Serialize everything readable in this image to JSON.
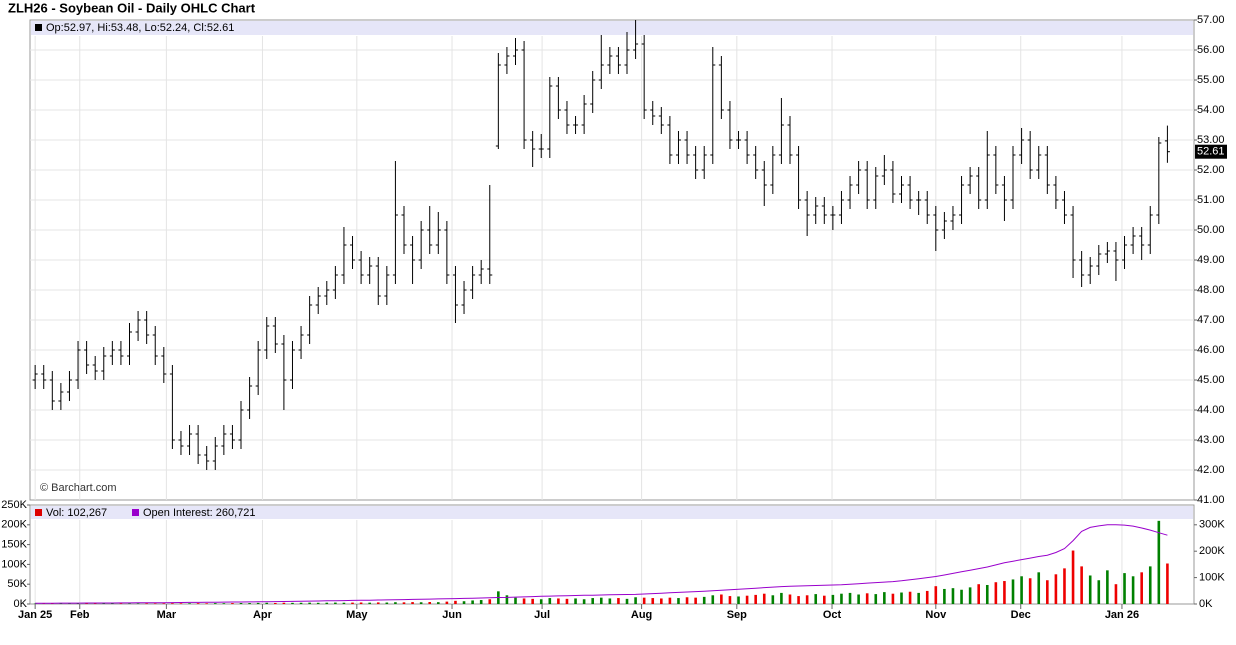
{
  "chart_data": [
    {
      "type": "ohlc",
      "title": "ZLH26 - Soybean Oil - Daily OHLC Chart",
      "legend": "Op:52.97, Hi:53.48, Lo:52.24, Cl:52.61",
      "watermark": "© Barchart.com",
      "color": "#000000",
      "grid": true,
      "open": [
        45.0,
        45.2,
        45.0,
        44.3,
        44.6,
        45.0,
        46.0,
        45.5,
        45.3,
        45.8,
        46.0,
        45.8,
        46.6,
        47.0,
        46.5,
        45.8,
        45.2,
        43.0,
        42.8,
        43.2,
        42.5,
        42.3,
        42.8,
        43.2,
        43.0,
        44.0,
        44.8,
        46.0,
        46.8,
        46.2,
        45.0,
        46.0,
        46.5,
        47.5,
        47.8,
        48.0,
        48.5,
        49.5,
        49.0,
        48.5,
        48.8,
        47.8,
        48.5,
        50.5,
        49.5,
        49.0,
        50.0,
        49.5,
        50.0,
        48.5,
        47.5,
        48.0,
        48.5,
        48.7,
        52.8,
        55.5,
        55.8,
        56.0,
        53.0,
        52.7,
        52.7,
        54.8,
        54.0,
        53.5,
        53.5,
        54.2,
        55.0,
        55.5,
        55.8,
        55.5,
        56.0,
        56.2,
        54.0,
        53.8,
        53.5,
        52.5,
        53.0,
        52.5,
        52.0,
        52.5,
        55.5,
        54.0,
        53.0,
        53.0,
        52.5,
        52.0,
        51.5,
        52.5,
        53.5,
        52.5,
        51.0,
        50.5,
        50.8,
        50.5,
        50.5,
        51.0,
        51.5,
        52.0,
        51.0,
        51.8,
        52.0,
        51.2,
        51.5,
        51.0,
        51.0,
        50.5,
        50.0,
        50.3,
        50.5,
        51.5,
        51.8,
        51.0,
        52.5,
        51.5,
        51.0,
        52.5,
        53.0,
        52.0,
        52.5,
        51.5,
        51.0,
        50.5,
        49.0,
        48.5,
        48.8,
        49.2,
        49.3,
        49.0,
        49.5,
        49.8,
        49.5,
        50.5,
        52.97
      ],
      "high": [
        45.5,
        45.5,
        45.3,
        44.9,
        45.3,
        46.3,
        46.3,
        45.8,
        46.1,
        46.3,
        46.3,
        46.9,
        47.3,
        47.3,
        46.8,
        46.1,
        45.5,
        43.3,
        43.5,
        43.5,
        42.8,
        43.1,
        43.5,
        43.5,
        44.3,
        45.1,
        46.3,
        47.1,
        47.1,
        46.5,
        46.3,
        46.8,
        47.8,
        48.1,
        48.3,
        48.8,
        50.1,
        49.8,
        49.3,
        49.1,
        49.1,
        48.8,
        52.3,
        50.8,
        49.8,
        50.3,
        50.8,
        50.6,
        50.3,
        48.8,
        48.3,
        48.8,
        49.0,
        51.5,
        55.9,
        56.1,
        56.4,
        56.3,
        53.3,
        53.2,
        55.1,
        55.1,
        54.3,
        53.8,
        54.5,
        55.3,
        56.5,
        56.1,
        56.1,
        56.6,
        57.0,
        56.5,
        54.3,
        54.1,
        53.8,
        53.3,
        53.3,
        52.8,
        52.8,
        56.1,
        55.8,
        54.3,
        53.3,
        53.3,
        52.8,
        52.3,
        52.8,
        54.4,
        53.8,
        52.8,
        51.3,
        51.1,
        51.1,
        50.8,
        51.3,
        51.8,
        52.3,
        52.3,
        52.1,
        52.5,
        52.3,
        51.8,
        51.8,
        51.3,
        51.3,
        50.8,
        50.6,
        50.8,
        51.8,
        52.1,
        52.1,
        53.3,
        52.8,
        51.8,
        52.8,
        53.4,
        53.3,
        52.8,
        52.8,
        51.8,
        51.3,
        50.8,
        49.3,
        49.1,
        49.5,
        49.6,
        49.6,
        49.8,
        50.1,
        50.1,
        50.8,
        53.1,
        53.48
      ],
      "low": [
        44.7,
        44.7,
        44.0,
        44.0,
        44.3,
        44.7,
        45.2,
        45.0,
        45.0,
        45.5,
        45.5,
        45.5,
        46.3,
        46.2,
        45.5,
        44.9,
        42.7,
        42.5,
        42.5,
        42.2,
        42.0,
        42.0,
        42.5,
        42.7,
        42.7,
        43.7,
        44.5,
        45.7,
        45.9,
        44.0,
        44.7,
        45.7,
        46.2,
        47.2,
        47.5,
        47.7,
        48.2,
        48.7,
        48.2,
        48.2,
        47.5,
        47.5,
        48.2,
        49.2,
        48.2,
        48.7,
        49.2,
        49.2,
        48.2,
        46.9,
        47.2,
        47.7,
        48.2,
        48.2,
        52.7,
        55.2,
        55.5,
        52.7,
        52.1,
        52.4,
        52.4,
        53.7,
        53.2,
        53.2,
        53.2,
        53.9,
        54.7,
        55.2,
        55.2,
        55.2,
        55.7,
        53.7,
        53.5,
        53.2,
        52.2,
        52.2,
        52.2,
        51.7,
        51.7,
        52.2,
        53.7,
        52.7,
        52.7,
        52.2,
        51.7,
        50.8,
        51.2,
        52.2,
        52.2,
        50.7,
        49.8,
        50.2,
        50.2,
        50.0,
        50.2,
        50.7,
        51.2,
        50.7,
        50.7,
        51.5,
        50.9,
        50.9,
        50.7,
        50.5,
        50.2,
        49.3,
        49.7,
        50.0,
        50.2,
        51.2,
        50.7,
        50.7,
        51.2,
        50.3,
        50.7,
        52.2,
        51.7,
        51.7,
        51.2,
        50.7,
        50.2,
        48.4,
        48.1,
        48.2,
        48.5,
        48.9,
        48.3,
        48.7,
        49.2,
        49.0,
        49.2,
        50.2,
        52.24
      ],
      "close": [
        45.2,
        45.0,
        44.3,
        44.6,
        45.0,
        46.0,
        45.5,
        45.3,
        45.8,
        46.0,
        45.8,
        46.6,
        47.0,
        46.5,
        45.8,
        45.2,
        43.0,
        42.8,
        43.2,
        42.5,
        42.3,
        42.8,
        43.2,
        43.0,
        44.0,
        44.8,
        46.0,
        46.8,
        46.2,
        45.0,
        46.0,
        46.5,
        47.5,
        47.8,
        48.0,
        48.5,
        49.5,
        49.0,
        48.5,
        48.8,
        47.8,
        48.5,
        50.5,
        49.5,
        49.0,
        50.0,
        49.5,
        50.0,
        48.5,
        47.5,
        48.0,
        48.5,
        48.7,
        48.5,
        55.5,
        55.8,
        56.0,
        53.0,
        52.7,
        52.7,
        54.8,
        54.0,
        53.5,
        53.5,
        54.2,
        55.0,
        55.5,
        55.8,
        55.5,
        56.0,
        56.2,
        54.0,
        53.8,
        53.5,
        52.5,
        53.0,
        52.5,
        52.0,
        52.5,
        55.5,
        54.0,
        53.0,
        53.0,
        52.5,
        52.0,
        51.5,
        52.5,
        53.5,
        52.5,
        51.0,
        50.5,
        50.8,
        50.5,
        50.5,
        51.0,
        51.5,
        52.0,
        51.0,
        51.8,
        52.0,
        51.2,
        51.5,
        51.0,
        51.0,
        50.5,
        50.0,
        50.3,
        50.5,
        51.5,
        51.8,
        51.0,
        52.5,
        51.5,
        51.0,
        52.5,
        53.0,
        52.0,
        52.5,
        51.5,
        51.0,
        50.5,
        49.0,
        48.5,
        48.8,
        49.2,
        49.3,
        49.0,
        49.5,
        49.8,
        49.5,
        50.5,
        52.9,
        52.61
      ],
      "xlim": [
        -0.6,
        135.1
      ],
      "xticks": [
        {
          "value": 0,
          "label": "Jan 25"
        },
        {
          "value": 5.2,
          "label": "Feb"
        },
        {
          "value": 15.3,
          "label": "Mar"
        },
        {
          "value": 26.5,
          "label": "Apr"
        },
        {
          "value": 37.5,
          "label": "May"
        },
        {
          "value": 48.6,
          "label": "Jun"
        },
        {
          "value": 59.1,
          "label": "Jul"
        },
        {
          "value": 70.7,
          "label": "Aug"
        },
        {
          "value": 81.8,
          "label": "Sep"
        },
        {
          "value": 92.9,
          "label": "Oct"
        },
        {
          "value": 105,
          "label": "Nov"
        },
        {
          "value": 114.9,
          "label": "Dec"
        },
        {
          "value": 126.7,
          "label": "Jan 26"
        }
      ],
      "ylim": [
        41,
        57
      ],
      "yticks": [
        {
          "value": 41,
          "label": "41.00"
        },
        {
          "value": 42,
          "label": "42.00"
        },
        {
          "value": 43,
          "label": "43.00"
        },
        {
          "value": 44,
          "label": "44.00"
        },
        {
          "value": 45,
          "label": "45.00"
        },
        {
          "value": 46,
          "label": "46.00"
        },
        {
          "value": 47,
          "label": "47.00"
        },
        {
          "value": 48,
          "label": "48.00"
        },
        {
          "value": 49,
          "label": "49.00"
        },
        {
          "value": 50,
          "label": "50.00"
        },
        {
          "value": 51,
          "label": "51.00"
        },
        {
          "value": 52,
          "label": "52.00"
        },
        {
          "value": 53,
          "label": "53.00"
        },
        {
          "value": 54,
          "label": "54.00"
        },
        {
          "value": 55,
          "label": "55.00"
        },
        {
          "value": 56,
          "label": "56.00"
        },
        {
          "value": 57,
          "label": "57.00"
        }
      ]
    },
    {
      "type": "bar",
      "up_color": "#008000",
      "down_color": "#ee0000",
      "series": [
        {
          "name": "Vol: 102,267",
          "color": "#dd0000",
          "values": [
            1200,
            1000,
            1500,
            1300,
            1100,
            1400,
            1600,
            1200,
            1300,
            1500,
            1700,
            1400,
            1600,
            1800,
            1500,
            1700,
            2000,
            1800,
            1900,
            2100,
            1800,
            2200,
            2000,
            2300,
            2500,
            2400,
            2800,
            3000,
            2600,
            3200,
            2900,
            3100,
            3400,
            3000,
            3300,
            3600,
            3200,
            3500,
            3800,
            3400,
            4000,
            3700,
            4500,
            4200,
            4800,
            4400,
            5000,
            4600,
            6000,
            8000,
            7000,
            9000,
            10000,
            12000,
            32000,
            22000,
            16000,
            14000,
            13000,
            12000,
            15000,
            14000,
            13000,
            14000,
            12000,
            15000,
            16000,
            14000,
            15000,
            13000,
            17000,
            16000,
            15000,
            14000,
            16000,
            15000,
            17000,
            16000,
            18000,
            22000,
            24000,
            20000,
            19000,
            21000,
            23000,
            26000,
            22000,
            28000,
            24000,
            20000,
            22000,
            25000,
            21000,
            23000,
            26000,
            28000,
            24000,
            27000,
            25000,
            30000,
            26000,
            29000,
            31000,
            28000,
            33000,
            45000,
            38000,
            40000,
            36000,
            42000,
            50000,
            48000,
            55000,
            58000,
            62000,
            70000,
            65000,
            80000,
            60000,
            75000,
            90000,
            135000,
            95000,
            72000,
            60000,
            85000,
            50000,
            78000,
            70000,
            80000,
            95000,
            210000,
            102267
          ]
        },
        {
          "name": "Open Interest: 260,721",
          "color": "#9900cc",
          "axis": "y2",
          "values": [
            3000,
            3100,
            3200,
            3300,
            3400,
            3500,
            3600,
            3700,
            3800,
            3900,
            4000,
            4200,
            4400,
            4600,
            4800,
            5000,
            5300,
            5600,
            5900,
            6200,
            6500,
            6800,
            7100,
            7400,
            7700,
            8000,
            8400,
            8800,
            9200,
            9600,
            10000,
            10500,
            11000,
            11500,
            12000,
            12500,
            13000,
            13500,
            14000,
            14500,
            15000,
            15600,
            16200,
            16800,
            17400,
            18000,
            18600,
            19200,
            19800,
            20500,
            21200,
            22000,
            22800,
            23600,
            24500,
            25000,
            26000,
            27000,
            28000,
            29000,
            30000,
            30700,
            31400,
            32100,
            32800,
            33500,
            34200,
            34900,
            35500,
            36000,
            36500,
            38000,
            39500,
            41000,
            42500,
            44000,
            45500,
            47000,
            48500,
            50000,
            52000,
            54000,
            56000,
            58000,
            60000,
            62000,
            64000,
            66000,
            67000,
            68000,
            69000,
            70000,
            71000,
            72000,
            73000,
            75000,
            77000,
            79000,
            81000,
            83000,
            85000,
            88000,
            92000,
            96000,
            100000,
            104000,
            110000,
            116000,
            122000,
            128000,
            134000,
            140000,
            148000,
            156000,
            162000,
            168000,
            174000,
            180000,
            185000,
            195000,
            210000,
            240000,
            275000,
            290000,
            296000,
            300000,
            300000,
            299000,
            295000,
            288000,
            280000,
            270000,
            260721
          ]
        }
      ],
      "ylim": [
        0,
        250000
      ],
      "yticks": [
        {
          "value": 0,
          "label": "0K"
        },
        {
          "value": 50000,
          "label": "50K"
        },
        {
          "value": 100000,
          "label": "100K"
        },
        {
          "value": 150000,
          "label": "150K"
        },
        {
          "value": 200000,
          "label": "200K"
        },
        {
          "value": 250000,
          "label": "250K"
        }
      ],
      "y2lim": [
        0,
        375000
      ],
      "y2ticks": [
        {
          "value": 0,
          "label": "0K"
        },
        {
          "value": 100000,
          "label": "100K"
        },
        {
          "value": 200000,
          "label": "200K"
        },
        {
          "value": 300000,
          "label": "300K"
        }
      ]
    }
  ]
}
